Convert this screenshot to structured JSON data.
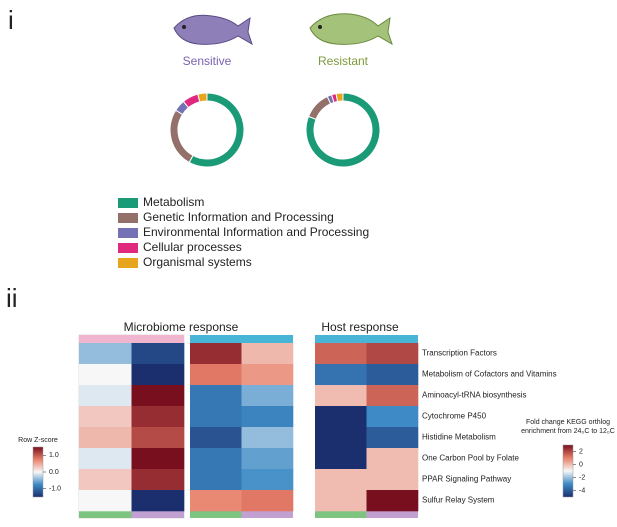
{
  "panels": [
    "i",
    "ii"
  ],
  "chart_data": [
    {
      "type": "pie",
      "title": "Sensitive",
      "title_color": "#7a62b0",
      "categories": [
        "Metabolism",
        "Genetic Information and Processing",
        "Environmental Information and Processing",
        "Cellular processes",
        "Organismal systems"
      ],
      "values": [
        58,
        26,
        5,
        7,
        4
      ],
      "colors": [
        "#1a9a76",
        "#93706a",
        "#7471b5",
        "#e0287f",
        "#e6a51c"
      ]
    },
    {
      "type": "pie",
      "title": "Resistant",
      "title_color": "#7c9a3c",
      "categories": [
        "Metabolism",
        "Genetic Information and Processing",
        "Environmental Information and Processing",
        "Cellular processes",
        "Organismal systems"
      ],
      "values": [
        81,
        12,
        2,
        2,
        3
      ],
      "colors": [
        "#1a9a76",
        "#93706a",
        "#7471b5",
        "#e0287f",
        "#e6a51c"
      ]
    },
    {
      "type": "heatmap",
      "title": "Microbiome response",
      "values": [
        [
          -0.4,
          -1.3,
          1.3,
          0.4
        ],
        [
          0.0,
          -1.5,
          0.8,
          0.6
        ],
        [
          -0.1,
          1.5,
          -0.9,
          -0.5
        ],
        [
          0.3,
          1.3,
          -0.9,
          -0.8
        ],
        [
          0.4,
          1.1,
          -1.2,
          -0.4
        ],
        [
          -0.1,
          1.5,
          -0.9,
          -0.6
        ],
        [
          0.3,
          1.3,
          -0.9,
          -0.7
        ],
        [
          0.0,
          -1.5,
          0.7,
          0.8
        ]
      ],
      "column_top_colors": [
        "#f1b6cf",
        "#f1b6cf",
        "#48b5d6",
        "#48b5d6"
      ],
      "column_bottom_colors": [
        "#7cc47f",
        "#c2a0d2",
        "#7cc47f",
        "#c2a0d2"
      ],
      "colorbar_title": [
        "Row Z-score"
      ],
      "zlim": [
        -1.5,
        1.5
      ],
      "zticks": [
        {
          "value": 1,
          "label": "1.0"
        },
        {
          "value": 0,
          "label": "0.0"
        },
        {
          "value": -1,
          "label": "-1.0"
        }
      ]
    },
    {
      "type": "heatmap",
      "title": "Host response",
      "rows": [
        "Transcription Factors",
        "Metabolism of Cofactors and Vitamins",
        "Aminoacyl-tRNA biosynthesis",
        "Cytochrome P450",
        "Histidine Metabolism",
        "One Carbon Pool by Folate",
        "PPAR Signaling Pathway",
        "Sulfur Relay System"
      ],
      "values": [
        [
          1.5,
          2
        ],
        [
          -3.5,
          -4
        ],
        [
          0,
          1.5
        ],
        [
          -5,
          -3
        ],
        [
          -5,
          -4
        ],
        [
          -5,
          0
        ],
        [
          0,
          0
        ],
        [
          0,
          3
        ]
      ],
      "column_top_colors": [
        "#48b5d6",
        "#48b5d6"
      ],
      "column_bottom_colors": [
        "#7cc47f",
        "#c2a0d2"
      ],
      "colorbar_title": [
        "Fold change KEGG orthlog",
        "enrichment from 24₀C to 12₀C"
      ],
      "zlim": [
        -5,
        3
      ],
      "zticks": [
        2,
        0,
        -2,
        -4
      ]
    }
  ]
}
